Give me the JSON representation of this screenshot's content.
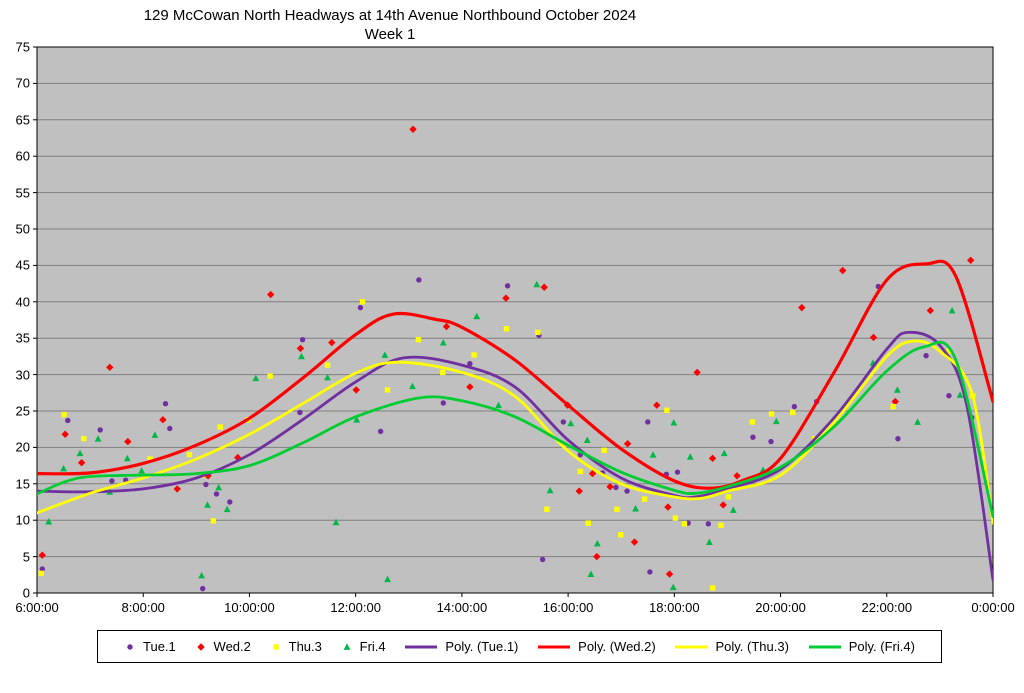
{
  "title": {
    "line1": "129 McCowan North Headways at 14th Avenue Northbound October 2024",
    "line2": "Week 1"
  },
  "colors": {
    "tue": "#7030A0",
    "wed": "#FF0000",
    "thu": "#FFFF00",
    "fri": "#00B94A",
    "fri_line": "#00CC33",
    "plot_bg": "#C0C0C0",
    "grid": "#808080",
    "axis": "#000000"
  },
  "chart_data": {
    "type": "scatter",
    "title": "129 McCowan North Headways at 14th Avenue Northbound October 2024 Week 1",
    "x_axis": {
      "tick_labels": [
        "6:00:00",
        "8:00:00",
        "10:00:00",
        "12:00:00",
        "14:00:00",
        "16:00:00",
        "18:00:00",
        "20:00:00",
        "22:00:00",
        "0:00:00"
      ],
      "tick_hours": [
        6,
        8,
        10,
        12,
        14,
        16,
        18,
        20,
        22,
        24
      ],
      "range_hours": [
        6,
        24
      ]
    },
    "y_axis": {
      "tick_labels": [
        "0",
        "5",
        "10",
        "15",
        "20",
        "25",
        "30",
        "35",
        "40",
        "45",
        "50",
        "55",
        "60",
        "65",
        "70",
        "75"
      ],
      "tick_values": [
        0,
        5,
        10,
        15,
        20,
        25,
        30,
        35,
        40,
        45,
        50,
        55,
        60,
        65,
        70,
        75
      ],
      "range": [
        0,
        75
      ]
    },
    "grid": "horizontal-only",
    "legend_position": "bottom",
    "series": [
      {
        "name": "Tue.1",
        "marker": "circle",
        "color": "#7030A0",
        "points": [
          [
            6.1,
            3.3
          ],
          [
            6.58,
            23.7
          ],
          [
            7.19,
            22.4
          ],
          [
            7.41,
            15.4
          ],
          [
            7.67,
            15.5
          ],
          [
            8.42,
            26.0
          ],
          [
            8.5,
            22.6
          ],
          [
            9.12,
            0.6
          ],
          [
            9.18,
            14.9
          ],
          [
            9.38,
            13.6
          ],
          [
            9.63,
            12.5
          ],
          [
            10.95,
            24.8
          ],
          [
            11.0,
            34.8
          ],
          [
            12.09,
            39.2
          ],
          [
            12.47,
            22.2
          ],
          [
            13.19,
            43.0
          ],
          [
            13.65,
            26.1
          ],
          [
            14.15,
            31.5
          ],
          [
            14.86,
            42.2
          ],
          [
            15.45,
            35.4
          ],
          [
            15.52,
            4.6
          ],
          [
            15.91,
            23.5
          ],
          [
            16.23,
            19.0
          ],
          [
            16.65,
            16.5
          ],
          [
            16.9,
            14.5
          ],
          [
            17.11,
            14.0
          ],
          [
            17.5,
            23.5
          ],
          [
            17.54,
            2.9
          ],
          [
            17.85,
            16.3
          ],
          [
            18.06,
            16.6
          ],
          [
            18.26,
            9.6
          ],
          [
            18.64,
            9.5
          ],
          [
            19.48,
            21.4
          ],
          [
            19.82,
            20.8
          ],
          [
            20.26,
            25.6
          ],
          [
            20.68,
            26.3
          ],
          [
            21.84,
            42.1
          ],
          [
            22.21,
            21.2
          ],
          [
            22.74,
            32.6
          ],
          [
            23.17,
            27.1
          ],
          [
            23.6,
            24.1
          ]
        ]
      },
      {
        "name": "Wed.2",
        "marker": "diamond",
        "color": "#FF0000",
        "points": [
          [
            6.1,
            5.2
          ],
          [
            6.53,
            21.8
          ],
          [
            6.84,
            17.9
          ],
          [
            7.37,
            31.0
          ],
          [
            7.71,
            20.8
          ],
          [
            8.37,
            23.8
          ],
          [
            8.64,
            14.3
          ],
          [
            9.22,
            16.1
          ],
          [
            9.78,
            18.6
          ],
          [
            10.4,
            41.0
          ],
          [
            10.96,
            33.6
          ],
          [
            11.55,
            34.4
          ],
          [
            12.01,
            27.9
          ],
          [
            13.08,
            63.7
          ],
          [
            13.71,
            36.6
          ],
          [
            14.15,
            28.3
          ],
          [
            14.83,
            40.5
          ],
          [
            15.55,
            42.0
          ],
          [
            15.99,
            25.8
          ],
          [
            16.21,
            14.0
          ],
          [
            16.46,
            16.4
          ],
          [
            16.54,
            5.0
          ],
          [
            16.79,
            14.6
          ],
          [
            17.12,
            20.5
          ],
          [
            17.25,
            7.0
          ],
          [
            17.67,
            25.8
          ],
          [
            17.88,
            11.8
          ],
          [
            17.91,
            2.6
          ],
          [
            18.43,
            30.3
          ],
          [
            18.72,
            18.5
          ],
          [
            18.92,
            12.1
          ],
          [
            19.18,
            16.1
          ],
          [
            20.4,
            39.2
          ],
          [
            21.17,
            44.3
          ],
          [
            21.75,
            35.1
          ],
          [
            22.16,
            26.3
          ],
          [
            22.82,
            38.8
          ],
          [
            23.58,
            45.7
          ]
        ]
      },
      {
        "name": "Thu.3",
        "marker": "square",
        "color": "#FFFF00",
        "points": [
          [
            6.08,
            2.7
          ],
          [
            6.51,
            24.5
          ],
          [
            6.88,
            21.2
          ],
          [
            8.13,
            18.4
          ],
          [
            8.87,
            19.0
          ],
          [
            9.11,
            16.2
          ],
          [
            9.32,
            9.9
          ],
          [
            9.45,
            22.8
          ],
          [
            9.98,
            23.8
          ],
          [
            10.39,
            29.8
          ],
          [
            11.47,
            31.3
          ],
          [
            12.13,
            40.0
          ],
          [
            12.6,
            27.9
          ],
          [
            13.18,
            34.8
          ],
          [
            13.64,
            30.3
          ],
          [
            14.23,
            32.7
          ],
          [
            14.84,
            36.3
          ],
          [
            15.43,
            35.8
          ],
          [
            15.6,
            11.5
          ],
          [
            16.23,
            16.7
          ],
          [
            16.38,
            9.6
          ],
          [
            16.68,
            19.6
          ],
          [
            16.92,
            11.5
          ],
          [
            16.99,
            8.0
          ],
          [
            17.44,
            12.9
          ],
          [
            17.86,
            25.1
          ],
          [
            18.02,
            10.3
          ],
          [
            18.19,
            9.5
          ],
          [
            18.72,
            0.7
          ],
          [
            18.88,
            9.3
          ],
          [
            19.02,
            13.2
          ],
          [
            19.47,
            23.5
          ],
          [
            19.83,
            24.6
          ],
          [
            20.23,
            24.8
          ],
          [
            20.64,
            21.2
          ],
          [
            22.12,
            25.6
          ],
          [
            23.17,
            33.2
          ],
          [
            23.62,
            27.1
          ]
        ]
      },
      {
        "name": "Fri.4",
        "marker": "triangle",
        "color": "#00B94A",
        "points": [
          [
            6.22,
            9.8
          ],
          [
            6.5,
            17.1
          ],
          [
            6.81,
            19.2
          ],
          [
            7.15,
            21.2
          ],
          [
            7.37,
            13.9
          ],
          [
            7.7,
            18.5
          ],
          [
            7.97,
            16.8
          ],
          [
            8.22,
            21.7
          ],
          [
            9.1,
            2.4
          ],
          [
            9.21,
            12.1
          ],
          [
            9.42,
            14.5
          ],
          [
            9.58,
            11.5
          ],
          [
            10.12,
            29.5
          ],
          [
            10.98,
            32.5
          ],
          [
            11.47,
            29.6
          ],
          [
            11.63,
            9.7
          ],
          [
            12.02,
            23.8
          ],
          [
            12.55,
            32.7
          ],
          [
            12.6,
            1.9
          ],
          [
            13.07,
            28.4
          ],
          [
            13.65,
            34.4
          ],
          [
            14.28,
            38.0
          ],
          [
            14.69,
            25.8
          ],
          [
            15.41,
            42.4
          ],
          [
            15.66,
            14.1
          ],
          [
            16.05,
            23.3
          ],
          [
            16.36,
            21.0
          ],
          [
            16.43,
            2.6
          ],
          [
            16.55,
            6.8
          ],
          [
            17.27,
            11.6
          ],
          [
            17.6,
            19.0
          ],
          [
            17.98,
            0.8
          ],
          [
            17.99,
            23.4
          ],
          [
            18.3,
            18.7
          ],
          [
            18.66,
            7.0
          ],
          [
            18.94,
            19.2
          ],
          [
            19.11,
            11.4
          ],
          [
            19.67,
            16.9
          ],
          [
            19.92,
            23.6
          ],
          [
            21.74,
            31.6
          ],
          [
            22.2,
            27.9
          ],
          [
            22.58,
            23.5
          ],
          [
            23.23,
            38.8
          ],
          [
            23.38,
            27.2
          ]
        ]
      }
    ],
    "trendlines": [
      {
        "name": "Poly. (Tue.1)",
        "color": "#7030A0",
        "width": 2.8,
        "anchors": [
          [
            6,
            14.0
          ],
          [
            7,
            13.9
          ],
          [
            8,
            14.3
          ],
          [
            9,
            15.8
          ],
          [
            10,
            19.0
          ],
          [
            11,
            23.8
          ],
          [
            12,
            29.0
          ],
          [
            12.9,
            32.3
          ],
          [
            14,
            31.3
          ],
          [
            15,
            28.3
          ],
          [
            16,
            21.0
          ],
          [
            17,
            15.8
          ],
          [
            18,
            13.4
          ],
          [
            18.4,
            13.2
          ],
          [
            19,
            14.3
          ],
          [
            20,
            17.0
          ],
          [
            21,
            24.0
          ],
          [
            22,
            33.5
          ],
          [
            22.4,
            35.8
          ],
          [
            23,
            34.0
          ],
          [
            23.5,
            26.0
          ],
          [
            24,
            1.8
          ]
        ]
      },
      {
        "name": "Poly. (Wed.2)",
        "color": "#FF0000",
        "width": 3.2,
        "anchors": [
          [
            6,
            16.4
          ],
          [
            7,
            16.5
          ],
          [
            8,
            17.8
          ],
          [
            9,
            20.3
          ],
          [
            10,
            24.0
          ],
          [
            11,
            29.5
          ],
          [
            12,
            35.5
          ],
          [
            12.7,
            38.3
          ],
          [
            13.5,
            37.6
          ],
          [
            14,
            36.5
          ],
          [
            15,
            32.0
          ],
          [
            16,
            25.8
          ],
          [
            17,
            19.8
          ],
          [
            18,
            15.4
          ],
          [
            18.7,
            14.4
          ],
          [
            19.3,
            15.5
          ],
          [
            20,
            18.5
          ],
          [
            21,
            30.2
          ],
          [
            22,
            43.0
          ],
          [
            22.75,
            45.2
          ],
          [
            23.3,
            43.5
          ],
          [
            24,
            26.3
          ]
        ]
      },
      {
        "name": "Poly. (Thu.3)",
        "color": "#FFFF00",
        "width": 2.8,
        "anchors": [
          [
            6,
            11.0
          ],
          [
            7,
            13.7
          ],
          [
            8,
            15.8
          ],
          [
            9,
            18.4
          ],
          [
            10,
            21.8
          ],
          [
            11,
            26.0
          ],
          [
            12,
            30.2
          ],
          [
            12.8,
            31.7
          ],
          [
            14,
            30.3
          ],
          [
            15,
            27.0
          ],
          [
            16,
            19.5
          ],
          [
            17,
            15.0
          ],
          [
            18,
            13.2
          ],
          [
            18.5,
            13.0
          ],
          [
            19,
            14.0
          ],
          [
            20,
            16.2
          ],
          [
            21,
            23.4
          ],
          [
            22,
            32.5
          ],
          [
            22.5,
            34.6
          ],
          [
            23,
            33.2
          ],
          [
            23.6,
            27.5
          ],
          [
            24,
            9.6
          ]
        ]
      },
      {
        "name": "Poly. (Fri.4)",
        "color": "#00CC33",
        "width": 2.8,
        "anchors": [
          [
            6,
            13.6
          ],
          [
            6.5,
            15.2
          ],
          [
            7,
            16.0
          ],
          [
            8,
            16.2
          ],
          [
            9,
            16.4
          ],
          [
            10,
            17.5
          ],
          [
            11,
            20.6
          ],
          [
            12,
            24.2
          ],
          [
            13.2,
            26.8
          ],
          [
            14,
            26.4
          ],
          [
            15,
            24.2
          ],
          [
            16,
            20.3
          ],
          [
            17,
            16.6
          ],
          [
            18,
            14.1
          ],
          [
            18.4,
            13.7
          ],
          [
            19,
            14.6
          ],
          [
            20,
            17.3
          ],
          [
            21,
            22.8
          ],
          [
            22,
            30.5
          ],
          [
            22.7,
            33.8
          ],
          [
            23.3,
            32.0
          ],
          [
            24,
            10.5
          ]
        ]
      }
    ]
  },
  "legend": {
    "items": [
      {
        "label": "Tue.1",
        "type": "marker",
        "marker": "circle",
        "color": "#7030A0"
      },
      {
        "label": "Wed.2",
        "type": "marker",
        "marker": "diamond",
        "color": "#FF0000"
      },
      {
        "label": "Thu.3",
        "type": "marker",
        "marker": "square",
        "color": "#FFFF00"
      },
      {
        "label": "Fri.4",
        "type": "marker",
        "marker": "triangle",
        "color": "#00B94A"
      },
      {
        "label": "Poly. (Tue.1)",
        "type": "line",
        "color": "#7030A0"
      },
      {
        "label": "Poly. (Wed.2)",
        "type": "line",
        "color": "#FF0000"
      },
      {
        "label": "Poly. (Thu.3)",
        "type": "line",
        "color": "#FFFF00"
      },
      {
        "label": "Poly. (Fri.4)",
        "type": "line",
        "color": "#00CC33"
      }
    ]
  }
}
